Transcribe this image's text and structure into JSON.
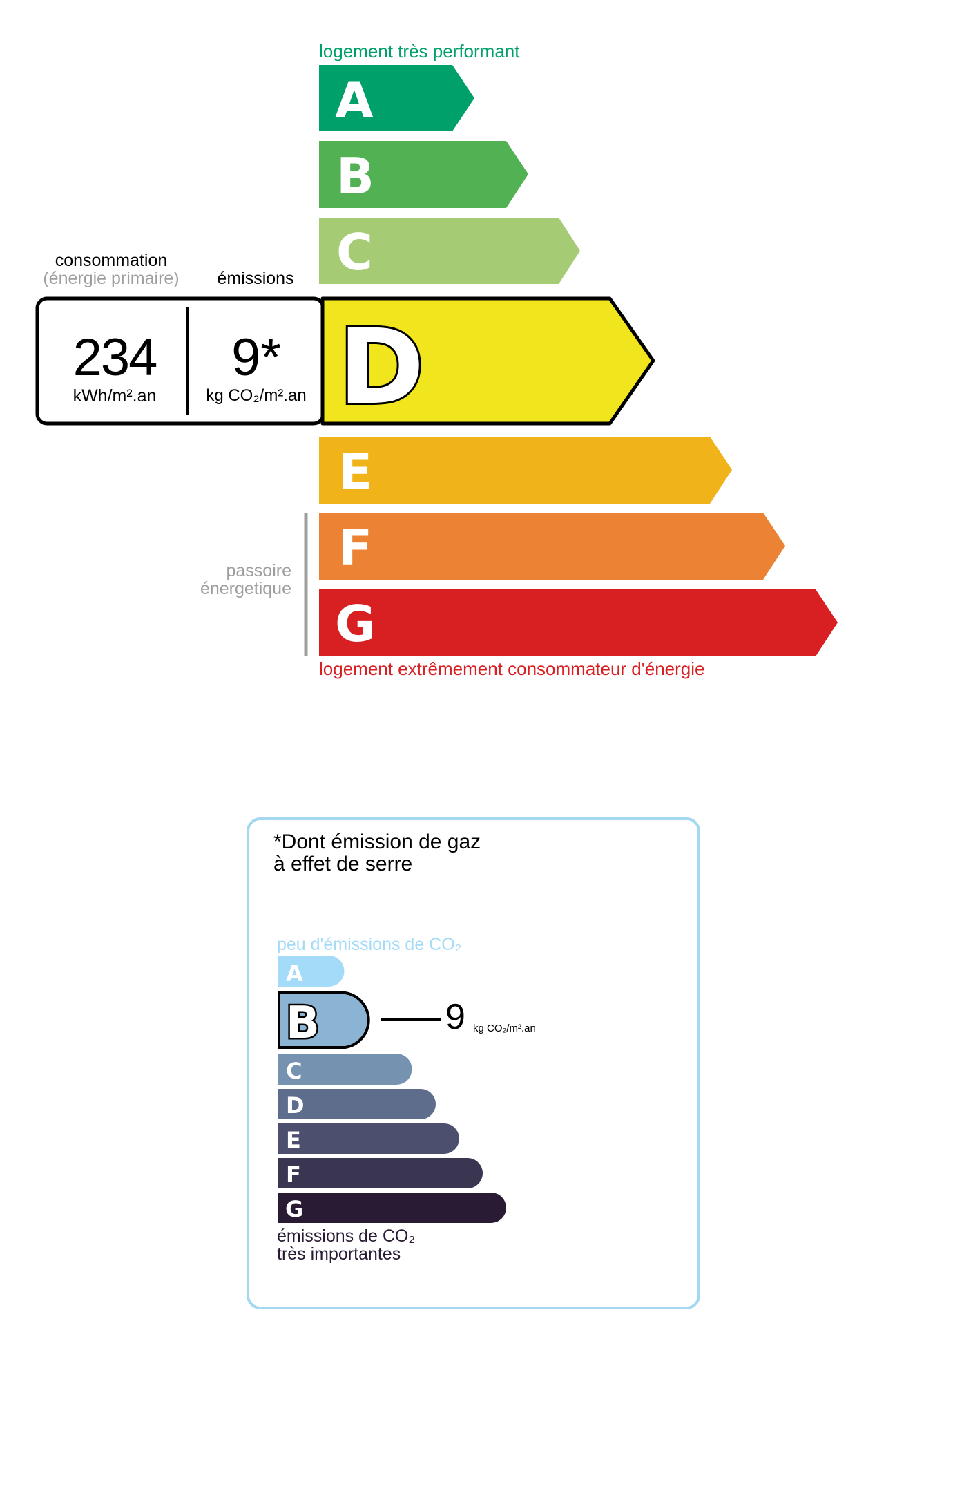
{
  "dpe": {
    "top_caption": "logement très performant",
    "bottom_caption": "logement extrêmement consommateur d'énergie",
    "passoire_line1": "passoire",
    "passoire_line2": "énergetique",
    "consumption_heading": "consommation",
    "consumption_subheading": "(énergie primaire)",
    "emissions_heading": "émissions",
    "consumption_value": "234",
    "consumption_unit": "kWh/m².an",
    "emissions_value": "9*",
    "emissions_unit": "kg CO₂/m².an",
    "current_class": "D",
    "classes": [
      {
        "letter": "A",
        "color": "#00a06b"
      },
      {
        "letter": "B",
        "color": "#52b153"
      },
      {
        "letter": "C",
        "color": "#a5cc74"
      },
      {
        "letter": "D",
        "color": "#f1e61d"
      },
      {
        "letter": "E",
        "color": "#f0b41a"
      },
      {
        "letter": "F",
        "color": "#eb8234"
      },
      {
        "letter": "G",
        "color": "#d81f22"
      }
    ]
  },
  "ges": {
    "title_line1": "*Dont émission de gaz",
    "title_line2": "à effet de serre",
    "top_caption": "peu d'émissions de CO₂",
    "bottom_caption_line1": "émissions de CO₂",
    "bottom_caption_line2": "très importantes",
    "current_class": "B",
    "value": "9",
    "unit": "kg CO₂/m².an",
    "border_color": "#a4d8f2",
    "classes": [
      {
        "letter": "A",
        "color": "#a3dbf8"
      },
      {
        "letter": "B",
        "color": "#8bb3d3"
      },
      {
        "letter": "C",
        "color": "#7593b1"
      },
      {
        "letter": "D",
        "color": "#5f6d8c"
      },
      {
        "letter": "E",
        "color": "#4c4f6d"
      },
      {
        "letter": "F",
        "color": "#3a3550"
      },
      {
        "letter": "G",
        "color": "#2a1b35"
      }
    ]
  }
}
